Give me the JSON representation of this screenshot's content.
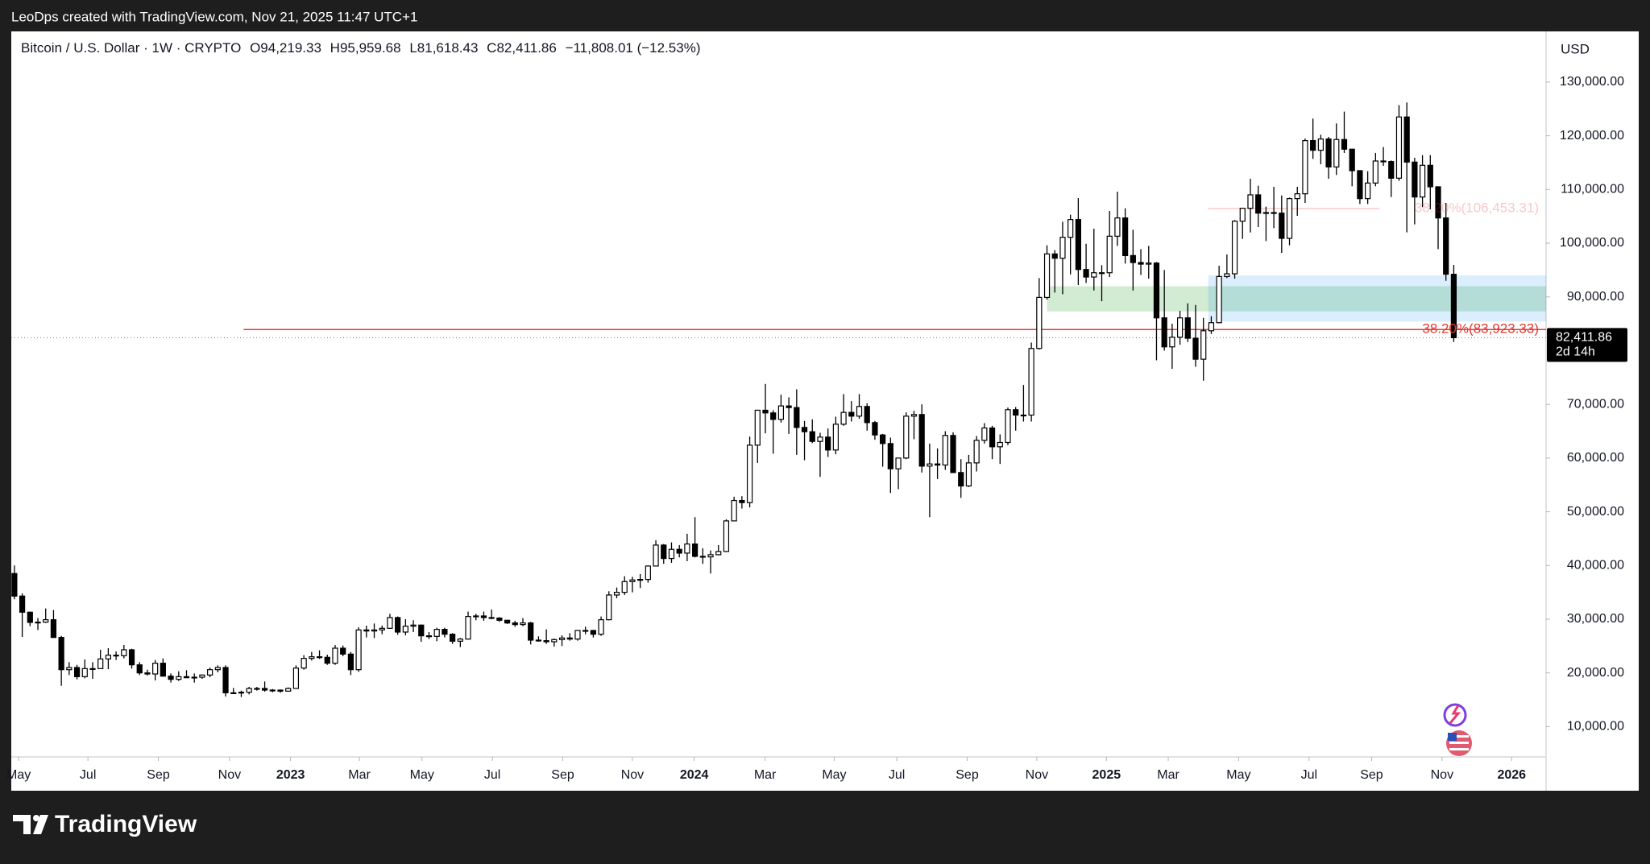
{
  "header": {
    "caption": "LeoDps created with TradingView.com, Nov 21, 2025 11:47 UTC+1"
  },
  "footer": {
    "brand": "TradingView"
  },
  "chart_data": {
    "type": "candlestick",
    "title": "Bitcoin / U.S. Dollar · 1W · CRYPTO",
    "ohlc_legend": [
      [
        "O",
        "94,219.33"
      ],
      [
        "H",
        "95,959.68"
      ],
      [
        "L",
        "81,618.43"
      ],
      [
        "C",
        "82,411.86"
      ]
    ],
    "change": "−11,808.01 (−12.53%)",
    "currency": "USD",
    "up_color": "#ffffff",
    "down_color": "#000000",
    "wick_color": "#000000",
    "xlim": [
      -0.4,
      195.8
    ],
    "xticks": [
      {
        "value": 0.54,
        "label": "May"
      },
      {
        "value": 9.4,
        "label": "Jul"
      },
      {
        "value": 18.4,
        "label": "Sep"
      },
      {
        "value": 27.5,
        "label": "Nov"
      },
      {
        "value": 35.3,
        "label": "2023"
      },
      {
        "value": 44.1,
        "label": "Mar"
      },
      {
        "value": 52.1,
        "label": "May"
      },
      {
        "value": 61.1,
        "label": "Jul"
      },
      {
        "value": 70.1,
        "label": "Sep"
      },
      {
        "value": 79,
        "label": "Nov"
      },
      {
        "value": 86.9,
        "label": "2024"
      },
      {
        "value": 95.96,
        "label": "Mar"
      },
      {
        "value": 104.8,
        "label": "May"
      },
      {
        "value": 112.8,
        "label": "Jul"
      },
      {
        "value": 121.8,
        "label": "Sep"
      },
      {
        "value": 130.7,
        "label": "Nov"
      },
      {
        "value": 139.6,
        "label": "2025"
      },
      {
        "value": 147.5,
        "label": "Mar"
      },
      {
        "value": 156.5,
        "label": "May"
      },
      {
        "value": 165.5,
        "label": "Jul"
      },
      {
        "value": 173.5,
        "label": "Sep"
      },
      {
        "value": 182.5,
        "label": "Nov"
      },
      {
        "value": 191.4,
        "label": "2026"
      }
    ],
    "ylim": [
      4360,
      139430
    ],
    "yticks": [
      {
        "value": 10000,
        "label": "10,000.00"
      },
      {
        "value": 20000,
        "label": "20,000.00"
      },
      {
        "value": 30000,
        "label": "30,000.00"
      },
      {
        "value": 40000,
        "label": "40,000.00"
      },
      {
        "value": 50000,
        "label": "50,000.00"
      },
      {
        "value": 60000,
        "label": "60,000.00"
      },
      {
        "value": 70000,
        "label": "70,000.00"
      },
      {
        "value": 90000,
        "label": "90,000.00"
      },
      {
        "value": 100000,
        "label": "100,000.00"
      },
      {
        "value": 110000,
        "label": "110,000.00"
      },
      {
        "value": 120000,
        "label": "120,000.00"
      },
      {
        "value": 130000,
        "label": "130,000.00"
      }
    ],
    "zones": [
      {
        "x": [
          132,
          195.8
        ],
        "y": [
          87300,
          92000
        ],
        "color": "rgba(76,175,80,0.25)"
      },
      {
        "x": [
          152.6,
          195.8
        ],
        "y": [
          85400,
          94000
        ],
        "color": "rgba(33,150,243,0.16)"
      }
    ],
    "fib_lines": [
      {
        "value": 83923.33,
        "label": "38.20%(83,923.33)",
        "x": [
          29.3,
          195.8
        ],
        "color": "#e53935"
      },
      {
        "value": 106453.31,
        "label": "38.20%(106,453.31)",
        "x": [
          152.6,
          174.5
        ],
        "color": "rgba(229,57,53,0.28)"
      }
    ],
    "last_price": {
      "value": 82411.86,
      "label": "82,411.86",
      "countdown": "2d 14h"
    },
    "candles": [
      [
        38500,
        40000,
        33700,
        34300
      ],
      [
        34300,
        34800,
        26700,
        31300
      ],
      [
        31300,
        31400,
        28700,
        29400
      ],
      [
        29400,
        30200,
        28000,
        29450
      ],
      [
        29450,
        32000,
        29300,
        29900
      ],
      [
        29900,
        31700,
        26500,
        26600
      ],
      [
        26600,
        26900,
        17600,
        20600
      ],
      [
        20600,
        22000,
        19600,
        21000
      ],
      [
        21000,
        21500,
        18800,
        19300
      ],
      [
        19300,
        22500,
        19000,
        20800
      ],
      [
        20800,
        22000,
        18900,
        20800
      ],
      [
        20800,
        24300,
        20800,
        22600
      ],
      [
        22600,
        24600,
        20700,
        23300
      ],
      [
        23300,
        24000,
        22400,
        23200
      ],
      [
        23200,
        25200,
        22700,
        24300
      ],
      [
        24300,
        24500,
        20800,
        21500
      ],
      [
        21500,
        22000,
        19600,
        20000
      ],
      [
        20000,
        20600,
        19500,
        19800
      ],
      [
        19800,
        22400,
        18600,
        21800
      ],
      [
        21800,
        22700,
        19300,
        19400
      ],
      [
        19400,
        19900,
        18200,
        18800
      ],
      [
        18800,
        20300,
        18500,
        19300
      ],
      [
        19300,
        20500,
        19100,
        19100
      ],
      [
        19100,
        19900,
        18200,
        19200
      ],
      [
        19200,
        19700,
        18900,
        19600
      ],
      [
        19600,
        21000,
        19200,
        20600
      ],
      [
        20600,
        21400,
        20100,
        21000
      ],
      [
        21000,
        21400,
        15600,
        16300
      ],
      [
        16300,
        17200,
        16200,
        16300
      ],
      [
        16300,
        16700,
        15500,
        16400
      ],
      [
        16400,
        17400,
        16000,
        17100
      ],
      [
        17100,
        17400,
        16700,
        17100
      ],
      [
        17100,
        18400,
        16500,
        16800
      ],
      [
        16800,
        17000,
        16400,
        16800
      ],
      [
        16800,
        16900,
        16300,
        16600
      ],
      [
        16600,
        17300,
        16500,
        17100
      ],
      [
        17100,
        21400,
        17100,
        20900
      ],
      [
        20900,
        23300,
        20600,
        22700
      ],
      [
        22700,
        23900,
        22300,
        23000
      ],
      [
        23000,
        24200,
        22600,
        22900
      ],
      [
        22900,
        23400,
        21500,
        21800
      ],
      [
        21800,
        25200,
        21500,
        24600
      ],
      [
        24600,
        25100,
        23100,
        23500
      ],
      [
        23500,
        23900,
        19600,
        20600
      ],
      [
        20600,
        28500,
        20200,
        28000
      ],
      [
        28000,
        28800,
        26600,
        27800
      ],
      [
        27800,
        29200,
        26500,
        28000
      ],
      [
        28000,
        28800,
        27200,
        28300
      ],
      [
        28300,
        31000,
        28200,
        30300
      ],
      [
        30300,
        30500,
        27100,
        27600
      ],
      [
        27600,
        30000,
        27000,
        28700
      ],
      [
        28700,
        29800,
        27600,
        28900
      ],
      [
        28900,
        29000,
        25800,
        26900
      ],
      [
        26900,
        27600,
        26300,
        26800
      ],
      [
        26800,
        28400,
        25900,
        28100
      ],
      [
        28100,
        28400,
        26600,
        27200
      ],
      [
        27200,
        27400,
        25400,
        25900
      ],
      [
        25900,
        26500,
        24800,
        26300
      ],
      [
        26300,
        31400,
        26200,
        30500
      ],
      [
        30500,
        31000,
        29800,
        30600
      ],
      [
        30600,
        31400,
        29700,
        30300
      ],
      [
        30300,
        31800,
        30000,
        30200
      ],
      [
        30200,
        30400,
        29500,
        29800
      ],
      [
        29800,
        29900,
        29100,
        29300
      ],
      [
        29300,
        29700,
        28600,
        29000
      ],
      [
        29000,
        30200,
        28700,
        29300
      ],
      [
        29300,
        29500,
        25300,
        26100
      ],
      [
        26100,
        26800,
        25800,
        26000
      ],
      [
        26000,
        28100,
        25400,
        25800
      ],
      [
        25800,
        26400,
        24900,
        26200
      ],
      [
        26200,
        27000,
        25000,
        26500
      ],
      [
        26500,
        27400,
        26000,
        26300
      ],
      [
        26300,
        28000,
        26000,
        27900
      ],
      [
        27900,
        28600,
        27200,
        27900
      ],
      [
        27900,
        28000,
        26600,
        27200
      ],
      [
        27200,
        30500,
        26900,
        29900
      ],
      [
        29900,
        35200,
        29800,
        34500
      ],
      [
        34500,
        35900,
        33900,
        35000
      ],
      [
        35000,
        38000,
        34500,
        37000
      ],
      [
        37000,
        37900,
        35000,
        37300
      ],
      [
        37300,
        38400,
        35800,
        37400
      ],
      [
        37400,
        40000,
        36800,
        39900
      ],
      [
        39900,
        44700,
        39900,
        43800
      ],
      [
        43800,
        44000,
        40300,
        41300
      ],
      [
        41300,
        44300,
        40500,
        43000
      ],
      [
        43000,
        43800,
        41500,
        42300
      ],
      [
        42300,
        45900,
        40800,
        44000
      ],
      [
        44000,
        49000,
        41500,
        41700
      ],
      [
        41700,
        43200,
        40300,
        41600
      ],
      [
        41600,
        42800,
        38500,
        42000
      ],
      [
        42000,
        43800,
        41900,
        42600
      ],
      [
        42600,
        48600,
        42500,
        48300
      ],
      [
        48300,
        52800,
        48300,
        52100
      ],
      [
        52100,
        52900,
        50600,
        51700
      ],
      [
        51700,
        64000,
        50800,
        62400
      ],
      [
        62400,
        69000,
        59100,
        68900
      ],
      [
        68900,
        73800,
        64600,
        68400
      ],
      [
        68400,
        68900,
        60800,
        67200
      ],
      [
        67200,
        71800,
        66600,
        69700
      ],
      [
        69700,
        71300,
        64500,
        69400
      ],
      [
        69400,
        72800,
        60600,
        65700
      ],
      [
        65700,
        66900,
        59600,
        64900
      ],
      [
        64900,
        67200,
        62800,
        63100
      ],
      [
        63100,
        64700,
        56500,
        63900
      ],
      [
        63900,
        65500,
        60200,
        61500
      ],
      [
        61500,
        67700,
        60700,
        66300
      ],
      [
        66300,
        71900,
        66000,
        68500
      ],
      [
        68500,
        70600,
        66800,
        67800
      ],
      [
        67800,
        71900,
        67300,
        69600
      ],
      [
        69600,
        70200,
        65100,
        66600
      ],
      [
        66600,
        66900,
        63400,
        64300
      ],
      [
        64300,
        64500,
        58400,
        62700
      ],
      [
        62700,
        63800,
        53500,
        58000
      ],
      [
        58000,
        60000,
        54200,
        60000
      ],
      [
        60000,
        68500,
        59800,
        67800
      ],
      [
        67800,
        68800,
        63500,
        68100
      ],
      [
        68100,
        70000,
        57300,
        58500
      ],
      [
        58500,
        62700,
        49000,
        58900
      ],
      [
        58900,
        61800,
        56100,
        58700
      ],
      [
        58700,
        65000,
        57800,
        64200
      ],
      [
        64200,
        64800,
        57200,
        57300
      ],
      [
        57300,
        59800,
        52600,
        54800
      ],
      [
        54800,
        60600,
        54600,
        59100
      ],
      [
        59100,
        64100,
        57500,
        63300
      ],
      [
        63300,
        66500,
        62700,
        65600
      ],
      [
        65600,
        66000,
        59800,
        62100
      ],
      [
        62100,
        64400,
        58900,
        62900
      ],
      [
        62900,
        69400,
        62400,
        69000
      ],
      [
        69000,
        69500,
        65100,
        68000
      ],
      [
        68000,
        73600,
        66800,
        68000
      ],
      [
        68000,
        81500,
        66800,
        80400
      ],
      [
        80400,
        93500,
        80200,
        89900
      ],
      [
        89900,
        99600,
        89500,
        98000
      ],
      [
        98000,
        98700,
        90800,
        97200
      ],
      [
        97200,
        104000,
        90500,
        101100
      ],
      [
        101100,
        105300,
        94200,
        104400
      ],
      [
        104400,
        108400,
        92200,
        95100
      ],
      [
        95100,
        99900,
        92600,
        93700
      ],
      [
        93700,
        102700,
        91200,
        94500
      ],
      [
        94500,
        95900,
        89200,
        94500
      ],
      [
        94500,
        106000,
        93700,
        101300
      ],
      [
        101300,
        109600,
        99500,
        104700
      ],
      [
        104700,
        106500,
        96200,
        97700
      ],
      [
        97700,
        102500,
        91200,
        96400
      ],
      [
        96400,
        98900,
        94100,
        96100
      ],
      [
        96100,
        99500,
        93400,
        96300
      ],
      [
        96300,
        96500,
        78200,
        86100
      ],
      [
        86100,
        95000,
        80000,
        80700
      ],
      [
        80700,
        85000,
        76600,
        82500
      ],
      [
        82500,
        87400,
        81100,
        86100
      ],
      [
        86100,
        88800,
        81600,
        82300
      ],
      [
        82300,
        88500,
        77000,
        78400
      ],
      [
        78400,
        86100,
        74400,
        83700
      ],
      [
        83700,
        86400,
        83100,
        85200
      ],
      [
        85200,
        95800,
        85100,
        93800
      ],
      [
        93800,
        97900,
        93500,
        94300
      ],
      [
        94300,
        104300,
        93400,
        104100
      ],
      [
        104100,
        105800,
        100800,
        106500
      ],
      [
        106500,
        112000,
        102000,
        109000
      ],
      [
        109000,
        110700,
        103000,
        105600
      ],
      [
        105600,
        106800,
        100400,
        105700
      ],
      [
        105700,
        110500,
        102800,
        105600
      ],
      [
        105600,
        108900,
        98200,
        100900
      ],
      [
        100900,
        108500,
        99600,
        108300
      ],
      [
        108300,
        110500,
        105100,
        109200
      ],
      [
        109200,
        119500,
        107500,
        119100
      ],
      [
        119100,
        123200,
        115700,
        117300
      ],
      [
        117300,
        120200,
        114700,
        119400
      ],
      [
        119400,
        119800,
        112000,
        114200
      ],
      [
        114200,
        122300,
        112700,
        119300
      ],
      [
        119300,
        124500,
        116800,
        117500
      ],
      [
        117500,
        117600,
        110600,
        113500
      ],
      [
        113500,
        113600,
        107300,
        108300
      ],
      [
        108300,
        113400,
        107300,
        111200
      ],
      [
        111200,
        116800,
        110600,
        115300
      ],
      [
        115300,
        117900,
        114400,
        115200
      ],
      [
        115200,
        115400,
        108600,
        112100
      ],
      [
        112100,
        125700,
        111600,
        123500
      ],
      [
        123500,
        126200,
        102000,
        115100
      ],
      [
        115100,
        115900,
        103500,
        108600
      ],
      [
        108600,
        116400,
        106700,
        114500
      ],
      [
        114500,
        116400,
        106300,
        110500
      ],
      [
        110500,
        110600,
        98900,
        104700
      ],
      [
        104700,
        107500,
        93000,
        94219
      ],
      [
        94219.33,
        95959.68,
        81618.43,
        82411.86
      ]
    ]
  }
}
